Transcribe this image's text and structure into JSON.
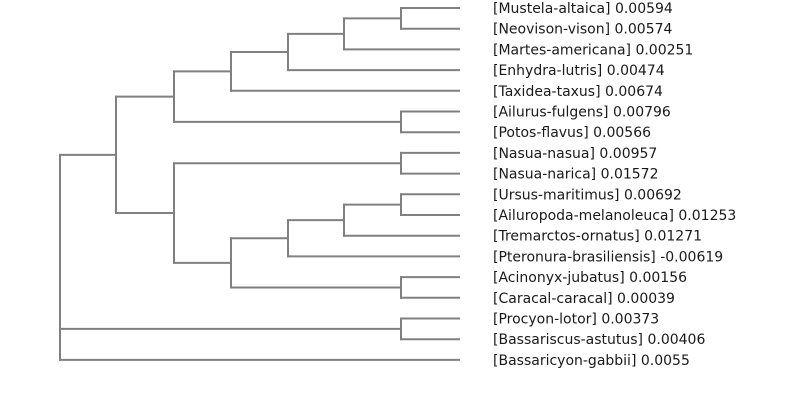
{
  "tree": {
    "edge_color": "#808080",
    "label_color": "#1a1a1a",
    "leaves": [
      {
        "name": "[Mustela-altaica]",
        "value": "0.00594"
      },
      {
        "name": "[Neovison-vison]",
        "value": "0.00574"
      },
      {
        "name": "[Martes-americana]",
        "value": "0.00251"
      },
      {
        "name": "[Enhydra-lutris]",
        "value": "0.00474"
      },
      {
        "name": "[Taxidea-taxus]",
        "value": "0.00674"
      },
      {
        "name": "[Ailurus-fulgens]",
        "value": "0.00796"
      },
      {
        "name": "[Potos-flavus]",
        "value": "0.00566"
      },
      {
        "name": "[Nasua-nasua]",
        "value": "0.00957"
      },
      {
        "name": "[Nasua-narica]",
        "value": "0.01572"
      },
      {
        "name": "[Ursus-maritimus]",
        "value": "0.00692"
      },
      {
        "name": "[Ailuropoda-melanoleuca]",
        "value": "0.01253"
      },
      {
        "name": "[Tremarctos-ornatus]",
        "value": "0.01271"
      },
      {
        "name": "[Pteronura-brasiliensis]",
        "value": "-0.00619"
      },
      {
        "name": "[Acinonyx-jubatus]",
        "value": "0.00156"
      },
      {
        "name": "[Caracal-caracal]",
        "value": "0.00039"
      },
      {
        "name": "[Procyon-lotor]",
        "value": "0.00373"
      },
      {
        "name": "[Bassariscus-astutus]",
        "value": "0.00406"
      },
      {
        "name": "[Bassaricyon-gabbii]",
        "value": "0.0055"
      }
    ]
  }
}
